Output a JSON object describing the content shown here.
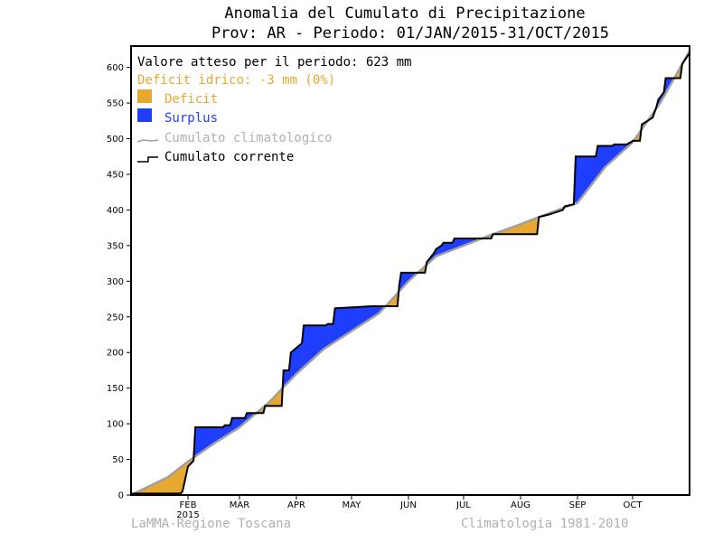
{
  "chart_data": {
    "type": "area",
    "title": "Anomalia del Cumulato di Precipitazione",
    "subtitle": "Prov: AR - Periodo: 01/JAN/2015-31/OCT/2015",
    "xlabel": "",
    "ylabel": "",
    "x_unit": "day of year 2015",
    "xlim": [
      0,
      304
    ],
    "ylim": [
      0,
      630
    ],
    "y_ticks": [
      0,
      50,
      100,
      150,
      200,
      250,
      300,
      350,
      400,
      450,
      500,
      550,
      600
    ],
    "month_ticks": [
      {
        "label": "FEB",
        "sub": "2015",
        "x": 31
      },
      {
        "label": "MAR",
        "sub": "",
        "x": 59
      },
      {
        "label": "APR",
        "sub": "",
        "x": 90
      },
      {
        "label": "MAY",
        "sub": "",
        "x": 120
      },
      {
        "label": "JUN",
        "sub": "",
        "x": 151
      },
      {
        "label": "JUL",
        "sub": "",
        "x": 181
      },
      {
        "label": "AUG",
        "sub": "",
        "x": 212
      },
      {
        "label": "SEP",
        "sub": "",
        "x": 243
      },
      {
        "label": "OCT",
        "sub": "",
        "x": 273
      }
    ],
    "legend": {
      "expected": "Valore atteso per il periodo: 623 mm",
      "deficit_text": "Deficit idrico: -3 mm (0%)",
      "deficit_label": "Deficit",
      "surplus_label": "Surplus",
      "clim_label": "Cumulato climatologico",
      "current_label": "Cumulato corrente"
    },
    "series": [
      {
        "name": "Cumulato climatologico",
        "color": "#a0a0a0",
        "x": [
          0,
          20,
          31,
          45,
          59,
          75,
          90,
          105,
          120,
          135,
          151,
          166,
          181,
          196,
          212,
          227,
          243,
          258,
          273,
          288,
          304
        ],
        "y": [
          0,
          25,
          47,
          72,
          95,
          130,
          170,
          205,
          230,
          255,
          300,
          335,
          350,
          365,
          380,
          395,
          410,
          460,
          495,
          550,
          623
        ]
      },
      {
        "name": "Cumulato corrente",
        "color": "#000000",
        "x": [
          0,
          1,
          27,
          28,
          31,
          34,
          35,
          50,
          51,
          54,
          55,
          62,
          63,
          72,
          73,
          75,
          76,
          82,
          83,
          86,
          87,
          93,
          94,
          106,
          107,
          110,
          111,
          131,
          132,
          145,
          146,
          147,
          160,
          161,
          162,
          165,
          166,
          169,
          170,
          175,
          176,
          196,
          197,
          221,
          222,
          225,
          228,
          235,
          236,
          241,
          242,
          253,
          254,
          262,
          263,
          270,
          271,
          272,
          273,
          277,
          278,
          283,
          284,
          286,
          287,
          290,
          291,
          299,
          300,
          304
        ],
        "y": [
          0,
          2,
          2,
          5,
          40,
          48,
          95,
          95,
          98,
          98,
          108,
          108,
          115,
          115,
          125,
          125,
          125,
          125,
          175,
          175,
          200,
          213,
          238,
          238,
          240,
          240,
          262,
          265,
          265,
          265,
          295,
          312,
          312,
          327,
          330,
          340,
          345,
          350,
          354,
          354,
          360,
          360,
          366,
          366,
          390,
          392,
          394,
          400,
          405,
          408,
          475,
          475,
          490,
          490,
          492,
          492,
          494,
          495,
          497,
          497,
          520,
          528,
          530,
          545,
          555,
          565,
          585,
          585,
          605,
          620
        ]
      }
    ],
    "colors": {
      "deficit": "#e8a830",
      "surplus": "#1f3fff"
    }
  },
  "footer": {
    "left": "LaMMA-Regione Toscana",
    "right": "Climatologia 1981-2010"
  }
}
